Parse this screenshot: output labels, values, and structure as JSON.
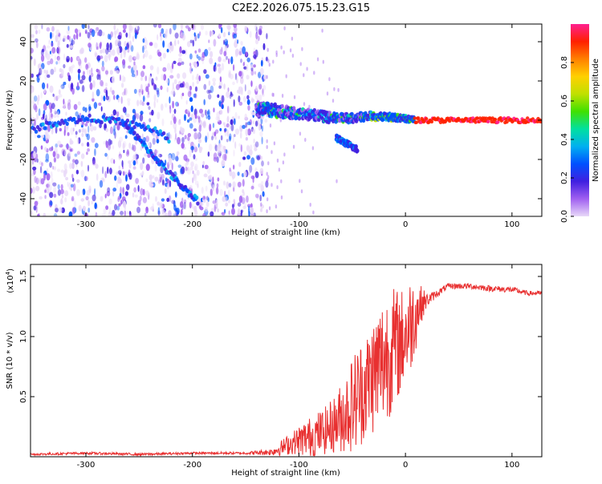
{
  "title": "C2E2.2026.075.15.23.G15",
  "chart_data": [
    {
      "type": "heatmap",
      "title": "C2E2.2026.075.15.23.G15",
      "xlabel": "Height of straight line (km)",
      "ylabel": "Frequency (Hz)",
      "xlim": [
        -352,
        128
      ],
      "ylim": [
        -49,
        49
      ],
      "xticks": [
        -300,
        -200,
        -100,
        0,
        100
      ],
      "yticks": [
        -40,
        -20,
        0,
        20,
        40
      ],
      "noise_region_x": [
        -352,
        -130
      ],
      "sparse_noise_x": [
        -130,
        -60
      ],
      "ridges": [
        {
          "name": "lower-left arc",
          "x": [
            -350,
            -340,
            -325,
            -310,
            -295,
            -280,
            -265,
            -250,
            -235,
            -222
          ],
          "y": [
            -5,
            -3,
            -1,
            0,
            1,
            0,
            -1,
            -3,
            -5,
            -10
          ]
        },
        {
          "name": "descending streak",
          "x": [
            -265,
            -255,
            -245,
            -235,
            -225,
            -215,
            -205,
            -195
          ],
          "y": [
            -1,
            -7,
            -13,
            -19,
            -25,
            -31,
            -36,
            -41
          ]
        },
        {
          "name": "main signal",
          "x": [
            -140,
            -125,
            -110,
            -95,
            -80,
            -65,
            -50,
            -35,
            -20,
            -5,
            10,
            30,
            60,
            90,
            128
          ],
          "y": [
            6,
            5,
            4,
            3,
            2,
            1,
            1,
            2,
            2,
            1,
            0,
            0,
            0,
            0,
            0
          ]
        },
        {
          "name": "side branch",
          "x": [
            -65,
            -55,
            -45
          ],
          "y": [
            -9,
            -12,
            -15
          ]
        }
      ],
      "colorbar": {
        "label": "Normalized spectral amplitude",
        "ticks": [
          0.0,
          0.2,
          0.4,
          0.6,
          0.8
        ],
        "range": [
          0,
          1
        ],
        "colors": [
          "#e8d8f8",
          "#a060f0",
          "#4020e0",
          "#0050ff",
          "#00b0f0",
          "#00e0a0",
          "#40e000",
          "#c0e000",
          "#ffd000",
          "#ff8000",
          "#ff2000",
          "#ff2090"
        ]
      }
    },
    {
      "type": "line",
      "title": "",
      "xlabel": "Height of straight line (km)",
      "ylabel": "SNR (10 * v/v)",
      "yscale_label": "(x10^4)",
      "yscale_base": "(x10",
      "yscale_exp": "4",
      "xlim": [
        -352,
        128
      ],
      "ylim": [
        0.0,
        1.6
      ],
      "xticks": [
        -300,
        -200,
        -100,
        0,
        100
      ],
      "yticks": [
        0.5,
        1.0,
        1.5
      ],
      "series": [
        {
          "name": "SNR",
          "color": "#e83030",
          "x": [
            -352,
            -300,
            -250,
            -200,
            -150,
            -125,
            -115,
            -105,
            -95,
            -85,
            -75,
            -65,
            -55,
            -45,
            -35,
            -25,
            -15,
            -5,
            0,
            5,
            10,
            15,
            20,
            25,
            30,
            40,
            60,
            80,
            100,
            115,
            128
          ],
          "y": [
            0.02,
            0.03,
            0.02,
            0.03,
            0.03,
            0.04,
            0.08,
            0.12,
            0.15,
            0.18,
            0.22,
            0.28,
            0.38,
            0.5,
            0.62,
            0.75,
            0.88,
            0.95,
            1.02,
            1.1,
            1.2,
            1.27,
            1.3,
            1.33,
            1.36,
            1.42,
            1.42,
            1.4,
            1.39,
            1.36,
            1.36
          ],
          "spread": [
            0.01,
            0.01,
            0.01,
            0.01,
            0.01,
            0.03,
            0.07,
            0.1,
            0.15,
            0.18,
            0.2,
            0.25,
            0.35,
            0.45,
            0.45,
            0.55,
            0.55,
            0.45,
            0.4,
            0.4,
            0.3,
            0.15,
            0.06,
            0.04,
            0.03,
            0.025,
            0.025,
            0.025,
            0.025,
            0.02,
            0.02
          ]
        }
      ]
    }
  ]
}
